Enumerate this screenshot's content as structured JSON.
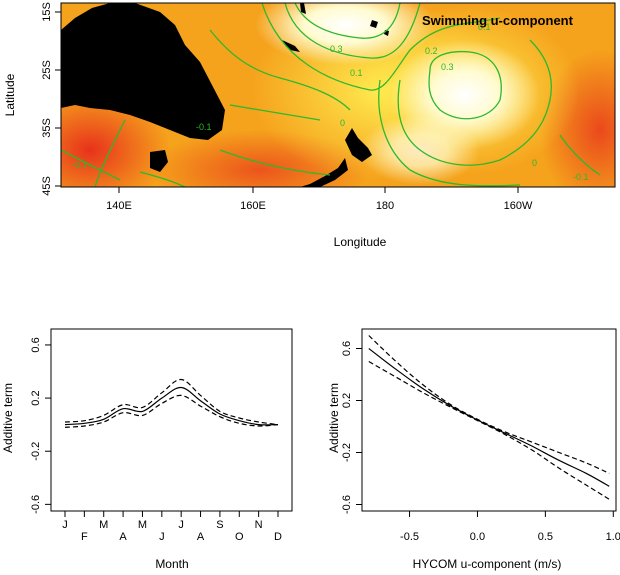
{
  "chart_data": [
    {
      "type": "heatmap",
      "title": "Swimming u-component",
      "xlabel": "Longitude",
      "ylabel": "Latitude",
      "x_ticks": [
        "140E",
        "160E",
        "180",
        "160W"
      ],
      "y_ticks": [
        "15S",
        "25S",
        "35S",
        "45S"
      ],
      "xlim": [
        132,
        215
      ],
      "ylim": [
        -45,
        -13
      ],
      "colors": {
        "low": "#e8321c",
        "mid": "#f5a21c",
        "high": "#fffbe6",
        "land": "#000000",
        "contour": "#2db82d"
      },
      "contour_labels": [
        "0.3",
        "0.2",
        "0.1",
        "0.3",
        "0.1",
        "0",
        "-0.1",
        "0",
        "-0.1",
        "-0.1"
      ]
    },
    {
      "type": "line",
      "xlabel": "Month",
      "ylabel": "Additive term",
      "categories": [
        "J",
        "F",
        "M",
        "A",
        "M",
        "J",
        "J",
        "A",
        "S",
        "O",
        "N",
        "D"
      ],
      "y_ticks": [
        "-0.6",
        "-0.2",
        "0.2",
        "0.6"
      ],
      "ylim": [
        -0.65,
        0.72
      ],
      "series": [
        {
          "style": "solid",
          "values": [
            0.0,
            0.01,
            0.04,
            0.12,
            0.1,
            0.2,
            0.28,
            0.18,
            0.08,
            0.03,
            0.0,
            0.0
          ]
        },
        {
          "style": "dashed",
          "values": [
            0.02,
            0.03,
            0.07,
            0.15,
            0.13,
            0.24,
            0.34,
            0.22,
            0.1,
            0.05,
            0.02,
            0.0
          ]
        },
        {
          "style": "dashed",
          "values": [
            -0.02,
            -0.01,
            0.02,
            0.09,
            0.07,
            0.16,
            0.22,
            0.14,
            0.06,
            0.01,
            -0.01,
            0.0
          ]
        }
      ]
    },
    {
      "type": "line",
      "xlabel": "HYCOM u-component (m/s)",
      "ylabel": "Additive term",
      "x_ticks": [
        "-0.5",
        "0.0",
        "0.5",
        "1.0"
      ],
      "y_ticks": [
        "-0.6",
        "-0.2",
        "0.2",
        "0.6"
      ],
      "xlim": [
        -0.85,
        1.02
      ],
      "ylim": [
        -0.65,
        0.75
      ],
      "x": [
        -0.8,
        -0.6,
        -0.4,
        -0.2,
        0.0,
        0.2,
        0.4,
        0.6,
        0.8,
        0.97
      ],
      "series": [
        {
          "style": "solid",
          "values": [
            0.6,
            0.44,
            0.29,
            0.16,
            0.05,
            -0.05,
            -0.15,
            -0.26,
            -0.36,
            -0.46
          ]
        },
        {
          "style": "dashed",
          "values": [
            0.7,
            0.5,
            0.32,
            0.17,
            0.055,
            -0.04,
            -0.12,
            -0.2,
            -0.28,
            -0.36
          ]
        },
        {
          "style": "dashed",
          "values": [
            0.5,
            0.38,
            0.26,
            0.15,
            0.045,
            -0.06,
            -0.18,
            -0.32,
            -0.45,
            -0.56
          ]
        }
      ]
    }
  ]
}
